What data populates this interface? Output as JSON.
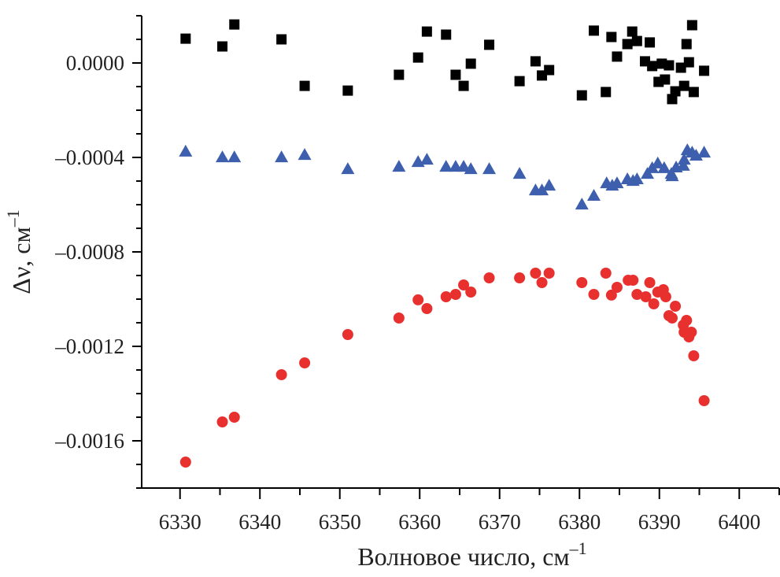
{
  "chart_data": {
    "type": "scatter",
    "title": "",
    "xlabel": "Волновое число, см",
    "xlabel_sup": "–1",
    "ylabel": "Δν, см",
    "ylabel_sup": "–1",
    "xlim": [
      6325.2,
      6405
    ],
    "ylim": [
      -0.0018,
      0.0002
    ],
    "grid": false,
    "legend": "none",
    "x_ticks": [
      6330,
      6340,
      6350,
      6360,
      6370,
      6380,
      6390,
      6400
    ],
    "x_tick_labels": [
      "6330",
      "6340",
      "6350",
      "6360",
      "6370",
      "6380",
      "6390",
      "6400"
    ],
    "y_ticks": [
      0,
      -0.0004,
      -0.0008,
      -0.0012,
      -0.0016
    ],
    "y_tick_labels": [
      "0.0000",
      "–0.0004",
      "–0.0008",
      "–0.0012",
      "–0.0016"
    ],
    "series": [
      {
        "name": "squares",
        "marker": "square",
        "color": "#000000",
        "points": [
          [
            6330.7,
            0.000103
          ],
          [
            6335.3,
            7e-05
          ],
          [
            6336.8,
            0.000163
          ],
          [
            6342.7,
            0.0001
          ],
          [
            6345.6,
            -9.7e-05
          ],
          [
            6351.0,
            -0.000117
          ],
          [
            6357.4,
            -5e-05
          ],
          [
            6359.8,
            2.3e-05
          ],
          [
            6360.9,
            0.000133
          ],
          [
            6363.3,
            0.00012
          ],
          [
            6364.5,
            -5e-05
          ],
          [
            6365.5,
            -9.7e-05
          ],
          [
            6366.4,
            -3e-06
          ],
          [
            6368.7,
            7.7e-05
          ],
          [
            6372.5,
            -7.7e-05
          ],
          [
            6374.5,
            7e-06
          ],
          [
            6375.3,
            -5.3e-05
          ],
          [
            6376.2,
            -3e-05
          ],
          [
            6380.3,
            -0.000137
          ],
          [
            6381.8,
            0.000137
          ],
          [
            6383.3,
            -0.000123
          ],
          [
            6384.0,
            0.00011
          ],
          [
            6384.7,
            2.7e-05
          ],
          [
            6386.0,
            8e-05
          ],
          [
            6386.6,
            0.000133
          ],
          [
            6387.2,
            9.3e-05
          ],
          [
            6388.2,
            7e-06
          ],
          [
            6388.8,
            8.7e-05
          ],
          [
            6389.1,
            -1.3e-05
          ],
          [
            6389.9,
            -8e-05
          ],
          [
            6390.3,
            -3e-06
          ],
          [
            6390.7,
            -7e-05
          ],
          [
            6391.2,
            -1e-05
          ],
          [
            6391.6,
            -0.000153
          ],
          [
            6392.0,
            -0.00012
          ],
          [
            6392.7,
            -2e-05
          ],
          [
            6393.1,
            -9.7e-05
          ],
          [
            6393.4,
            8e-05
          ],
          [
            6393.7,
            3e-06
          ],
          [
            6394.1,
            0.00016
          ],
          [
            6394.3,
            -0.000123
          ],
          [
            6395.6,
            -3.3e-05
          ]
        ]
      },
      {
        "name": "triangles",
        "marker": "triangle",
        "color": "#3d5fad",
        "points": [
          [
            6330.7,
            -0.000373
          ],
          [
            6335.3,
            -0.000397
          ],
          [
            6336.8,
            -0.000397
          ],
          [
            6342.7,
            -0.000397
          ],
          [
            6345.6,
            -0.000387
          ],
          [
            6351.0,
            -0.000447
          ],
          [
            6357.4,
            -0.000437
          ],
          [
            6359.8,
            -0.000417
          ],
          [
            6360.9,
            -0.000407
          ],
          [
            6363.3,
            -0.000437
          ],
          [
            6364.5,
            -0.000437
          ],
          [
            6365.5,
            -0.000437
          ],
          [
            6366.4,
            -0.000447
          ],
          [
            6368.7,
            -0.000447
          ],
          [
            6372.5,
            -0.000467
          ],
          [
            6374.5,
            -0.000537
          ],
          [
            6375.3,
            -0.000537
          ],
          [
            6376.2,
            -0.000517
          ],
          [
            6380.3,
            -0.000597
          ],
          [
            6381.8,
            -0.00056
          ],
          [
            6383.4,
            -0.000507
          ],
          [
            6384.1,
            -0.000517
          ],
          [
            6384.7,
            -0.000507
          ],
          [
            6386.0,
            -0.00049
          ],
          [
            6386.7,
            -0.000497
          ],
          [
            6387.2,
            -0.00049
          ],
          [
            6388.5,
            -0.000467
          ],
          [
            6389.1,
            -0.000443
          ],
          [
            6389.8,
            -0.000423
          ],
          [
            6390.6,
            -0.000443
          ],
          [
            6391.5,
            -0.000467
          ],
          [
            6391.6,
            -0.000477
          ],
          [
            6392.1,
            -0.00044
          ],
          [
            6393.0,
            -0.000433
          ],
          [
            6393.1,
            -0.000407
          ],
          [
            6393.5,
            -0.000367
          ],
          [
            6394.1,
            -0.000377
          ],
          [
            6394.6,
            -0.00039
          ],
          [
            6395.6,
            -0.000377
          ]
        ]
      },
      {
        "name": "circles",
        "marker": "circle",
        "color": "#e8302e",
        "points": [
          [
            6330.7,
            -0.00169
          ],
          [
            6335.3,
            -0.00152
          ],
          [
            6336.8,
            -0.0015
          ],
          [
            6342.7,
            -0.00132
          ],
          [
            6345.6,
            -0.00127
          ],
          [
            6351.0,
            -0.00115
          ],
          [
            6357.4,
            -0.00108
          ],
          [
            6359.8,
            -0.001003
          ],
          [
            6360.9,
            -0.00104
          ],
          [
            6363.3,
            -0.00099
          ],
          [
            6364.5,
            -0.00098
          ],
          [
            6365.5,
            -0.00094
          ],
          [
            6366.4,
            -0.00097
          ],
          [
            6368.7,
            -0.00091
          ],
          [
            6372.5,
            -0.00091
          ],
          [
            6374.5,
            -0.00089
          ],
          [
            6375.3,
            -0.00093
          ],
          [
            6376.2,
            -0.00089
          ],
          [
            6380.3,
            -0.00093
          ],
          [
            6381.8,
            -0.00098
          ],
          [
            6383.3,
            -0.00089
          ],
          [
            6384.0,
            -0.000983
          ],
          [
            6384.7,
            -0.00095
          ],
          [
            6386.1,
            -0.00092
          ],
          [
            6386.7,
            -0.00092
          ],
          [
            6387.2,
            -0.00098
          ],
          [
            6388.3,
            -0.00099
          ],
          [
            6388.8,
            -0.00093
          ],
          [
            6389.3,
            -0.00102
          ],
          [
            6389.8,
            -0.00097
          ],
          [
            6390.5,
            -0.00096
          ],
          [
            6390.8,
            -0.00099
          ],
          [
            6392.0,
            -0.00103
          ],
          [
            6391.2,
            -0.00107
          ],
          [
            6391.6,
            -0.00108
          ],
          [
            6393.4,
            -0.00109
          ],
          [
            6393.0,
            -0.00111
          ],
          [
            6394.0,
            -0.00114
          ],
          [
            6393.1,
            -0.00114
          ],
          [
            6393.7,
            -0.00116
          ],
          [
            6394.3,
            -0.00124
          ],
          [
            6395.6,
            -0.00143
          ]
        ]
      }
    ]
  }
}
